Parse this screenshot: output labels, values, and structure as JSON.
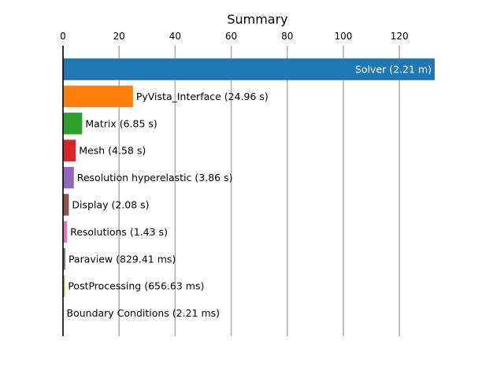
{
  "chart_data": {
    "type": "bar",
    "orientation": "horizontal",
    "title": "Summary",
    "xlabel": "",
    "ylabel": "",
    "xlim": [
      0,
      132.6
    ],
    "xticks": [
      "0",
      "20",
      "40",
      "60",
      "80",
      "100",
      "120"
    ],
    "xaxis_position": "top",
    "grid": "vertical",
    "legend": "none",
    "bars": [
      {
        "label": "Solver (2.21 m)",
        "value": 132.6,
        "color": "#1f77b4",
        "label_inside": true
      },
      {
        "label": "PyVista_Interface (24.96 s)",
        "value": 24.96,
        "color": "#ff7f0e",
        "label_inside": false
      },
      {
        "label": "Matrix (6.85 s)",
        "value": 6.85,
        "color": "#2ca02c",
        "label_inside": false
      },
      {
        "label": "Mesh (4.58 s)",
        "value": 4.58,
        "color": "#d62728",
        "label_inside": false
      },
      {
        "label": "Resolution hyperelastic (3.86 s)",
        "value": 3.86,
        "color": "#9467bd",
        "label_inside": false
      },
      {
        "label": "Display (2.08 s)",
        "value": 2.08,
        "color": "#8c564b",
        "label_inside": false
      },
      {
        "label": "Resolutions (1.43 s)",
        "value": 1.43,
        "color": "#e377c2",
        "label_inside": false
      },
      {
        "label": "Paraview (829.41 ms)",
        "value": 0.82941,
        "color": "#7f7f7f",
        "label_inside": false
      },
      {
        "label": "PostProcessing (656.63 ms)",
        "value": 0.65663,
        "color": "#bcbd22",
        "label_inside": false
      },
      {
        "label": "Boundary Conditions (2.21 ms)",
        "value": 0.00221,
        "color": "#17becf",
        "label_inside": false
      }
    ]
  }
}
